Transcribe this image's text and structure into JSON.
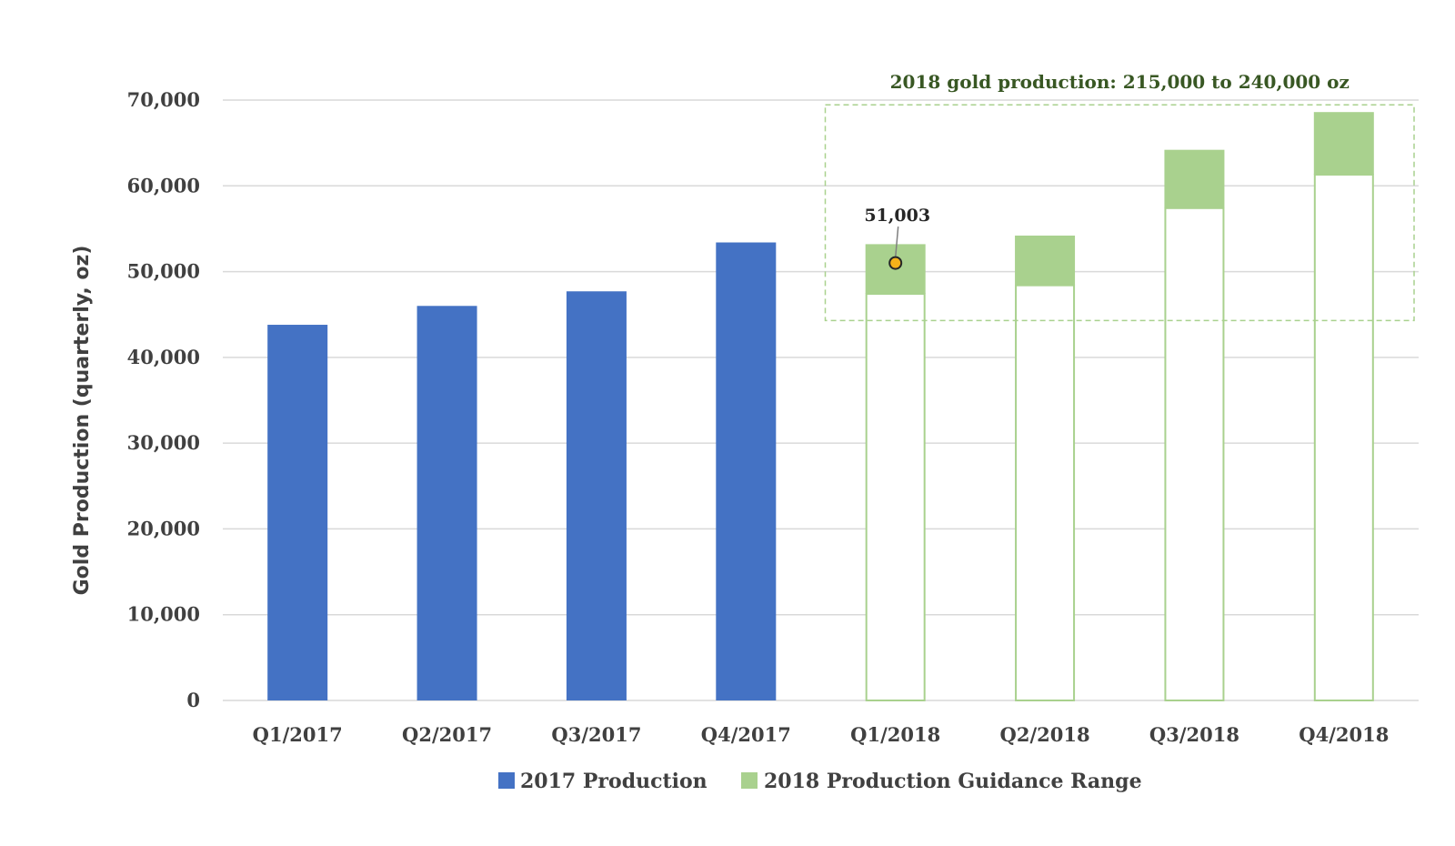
{
  "chart_data": {
    "type": "bar",
    "title": "",
    "ylabel": "Gold Production (quarterly, oz)",
    "xlabel": "",
    "ylim": [
      0,
      70000
    ],
    "yticks": [
      0,
      10000,
      20000,
      30000,
      40000,
      50000,
      60000,
      70000
    ],
    "ytick_labels": [
      "0",
      "10,000",
      "20,000",
      "30,000",
      "40,000",
      "50,000",
      "60,000",
      "70,000"
    ],
    "grid": true,
    "categories": [
      "Q1/2017",
      "Q2/2017",
      "Q3/2017",
      "Q4/2017",
      "Q1/2018",
      "Q2/2018",
      "Q3/2018",
      "Q4/2018"
    ],
    "series": [
      {
        "name": "2017 Production",
        "color": "#4472C4",
        "values": [
          43800,
          46000,
          47700,
          53400,
          null,
          null,
          null,
          null
        ]
      },
      {
        "name": "2018 Production Guidance Range",
        "color": "#A9D18E",
        "ranges": [
          null,
          null,
          null,
          null,
          [
            47400,
            53200
          ],
          [
            48400,
            54200
          ],
          [
            57400,
            64200
          ],
          [
            61300,
            68600
          ]
        ]
      }
    ],
    "legend_position": "bottom",
    "point_annotation": {
      "category": "Q1/2018",
      "value": 51003,
      "label": "51,003",
      "marker_color": "#F5B21A"
    },
    "box_annotation": {
      "label": "2018 gold production: 215,000 to 240,000 oz",
      "color": "#548235"
    }
  }
}
